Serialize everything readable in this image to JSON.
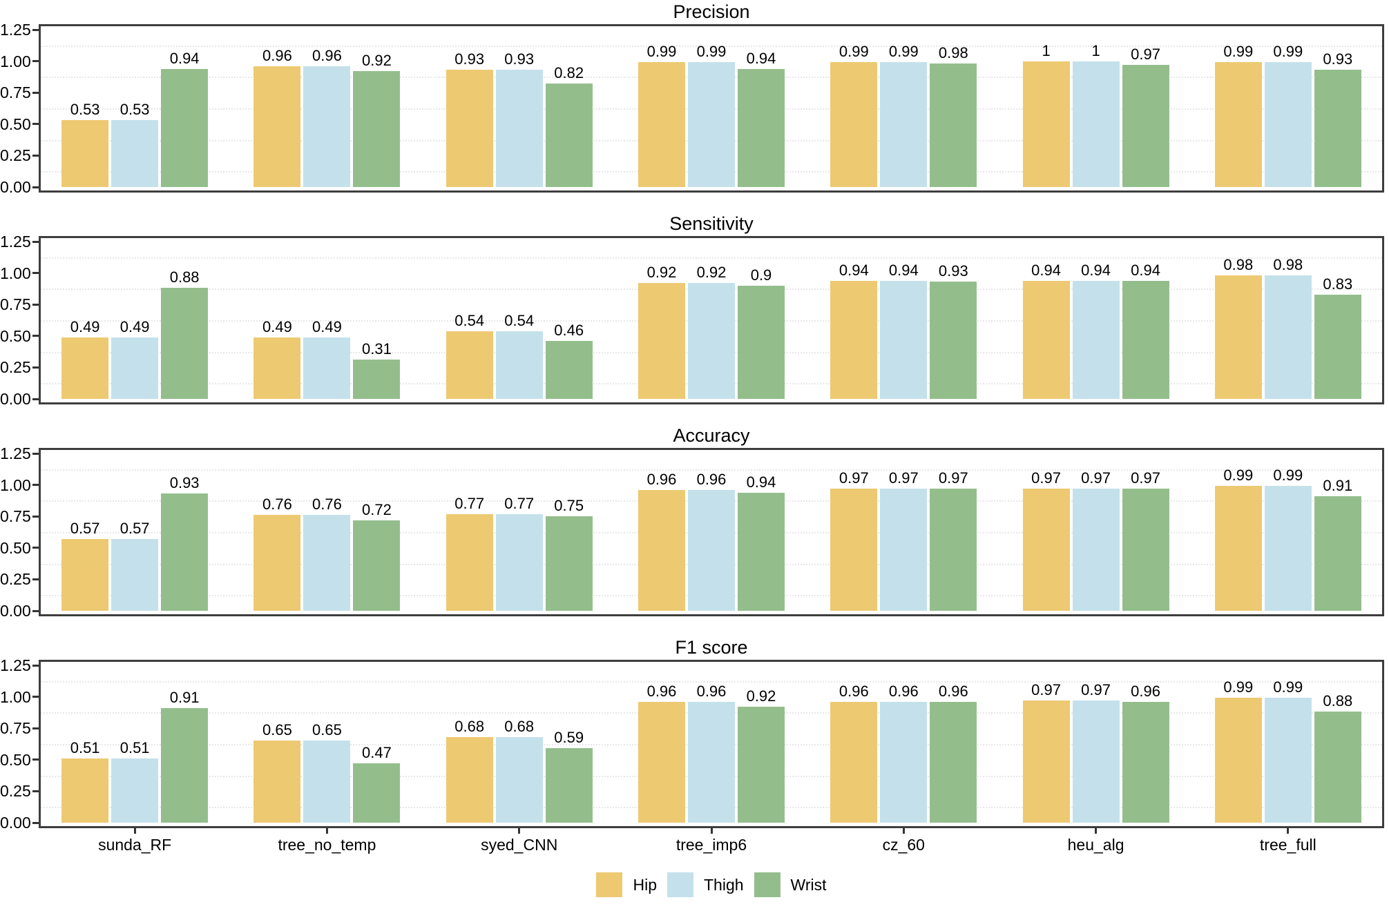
{
  "figure_title": "",
  "chart_data": [
    {
      "type": "bar",
      "title": "Precision",
      "categories": [
        "sunda_RF",
        "tree_no_temp",
        "syed_CNN",
        "tree_imp6",
        "cz_60",
        "heu_alg",
        "tree_full"
      ],
      "series": [
        {
          "name": "Hip",
          "color": "#EDC972",
          "values": [
            0.53,
            0.96,
            0.93,
            0.99,
            0.99,
            1,
            0.99
          ]
        },
        {
          "name": "Thigh",
          "color": "#C4E1EB",
          "values": [
            0.53,
            0.96,
            0.93,
            0.99,
            0.99,
            1,
            0.99
          ]
        },
        {
          "name": "Wrist",
          "color": "#93BE8C",
          "values": [
            0.94,
            0.92,
            0.82,
            0.94,
            0.98,
            0.97,
            0.93
          ]
        }
      ],
      "ylim": [
        0,
        1.25
      ],
      "yticks": [
        "0.00",
        "0.25",
        "0.50",
        "0.75",
        "1.00",
        "1.25"
      ],
      "grid": "minor horizontal dotted",
      "bar_labels": true,
      "legend_position": "bottom"
    },
    {
      "type": "bar",
      "title": "Sensitivity",
      "categories": [
        "sunda_RF",
        "tree_no_temp",
        "syed_CNN",
        "tree_imp6",
        "cz_60",
        "heu_alg",
        "tree_full"
      ],
      "series": [
        {
          "name": "Hip",
          "color": "#EDC972",
          "values": [
            0.49,
            0.49,
            0.54,
            0.92,
            0.94,
            0.94,
            0.98
          ]
        },
        {
          "name": "Thigh",
          "color": "#C4E1EB",
          "values": [
            0.49,
            0.49,
            0.54,
            0.92,
            0.94,
            0.94,
            0.98
          ]
        },
        {
          "name": "Wrist",
          "color": "#93BE8C",
          "values": [
            0.88,
            0.31,
            0.46,
            0.9,
            0.93,
            0.94,
            0.83
          ]
        }
      ],
      "ylim": [
        0,
        1.25
      ],
      "yticks": [
        "0.00",
        "0.25",
        "0.50",
        "0.75",
        "1.00",
        "1.25"
      ],
      "grid": "minor horizontal dotted",
      "bar_labels": true,
      "legend_position": "bottom"
    },
    {
      "type": "bar",
      "title": "Accuracy",
      "categories": [
        "sunda_RF",
        "tree_no_temp",
        "syed_CNN",
        "tree_imp6",
        "cz_60",
        "heu_alg",
        "tree_full"
      ],
      "series": [
        {
          "name": "Hip",
          "color": "#EDC972",
          "values": [
            0.57,
            0.76,
            0.77,
            0.96,
            0.97,
            0.97,
            0.99
          ]
        },
        {
          "name": "Thigh",
          "color": "#C4E1EB",
          "values": [
            0.57,
            0.76,
            0.77,
            0.96,
            0.97,
            0.97,
            0.99
          ]
        },
        {
          "name": "Wrist",
          "color": "#93BE8C",
          "values": [
            0.93,
            0.72,
            0.75,
            0.94,
            0.97,
            0.97,
            0.91
          ]
        }
      ],
      "ylim": [
        0,
        1.25
      ],
      "yticks": [
        "0.00",
        "0.25",
        "0.50",
        "0.75",
        "1.00",
        "1.25"
      ],
      "grid": "minor horizontal dotted",
      "bar_labels": true,
      "legend_position": "bottom"
    },
    {
      "type": "bar",
      "title": "F1 score",
      "categories": [
        "sunda_RF",
        "tree_no_temp",
        "syed_CNN",
        "tree_imp6",
        "cz_60",
        "heu_alg",
        "tree_full"
      ],
      "series": [
        {
          "name": "Hip",
          "color": "#EDC972",
          "values": [
            0.51,
            0.65,
            0.68,
            0.96,
            0.96,
            0.97,
            0.99
          ]
        },
        {
          "name": "Thigh",
          "color": "#C4E1EB",
          "values": [
            0.51,
            0.65,
            0.68,
            0.96,
            0.96,
            0.97,
            0.99
          ]
        },
        {
          "name": "Wrist",
          "color": "#93BE8C",
          "values": [
            0.91,
            0.47,
            0.59,
            0.92,
            0.96,
            0.96,
            0.88
          ]
        }
      ],
      "ylim": [
        0,
        1.25
      ],
      "yticks": [
        "0.00",
        "0.25",
        "0.50",
        "0.75",
        "1.00",
        "1.25"
      ],
      "grid": "minor horizontal dotted",
      "bar_labels": true,
      "legend_position": "bottom"
    }
  ],
  "legend": {
    "items": [
      {
        "label": "Hip",
        "color": "#EDC972"
      },
      {
        "label": "Thigh",
        "color": "#C4E1EB"
      },
      {
        "label": "Wrist",
        "color": "#93BE8C"
      }
    ]
  }
}
